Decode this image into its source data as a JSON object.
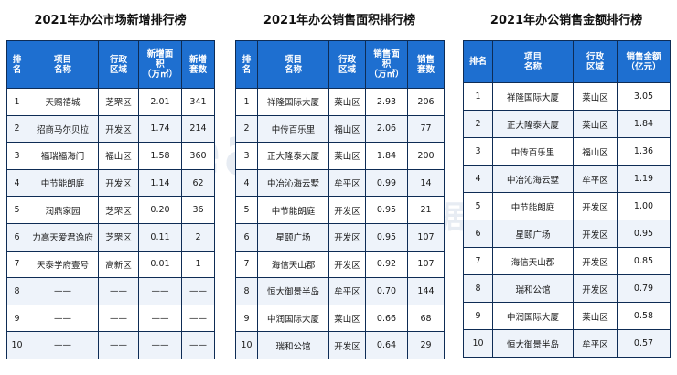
{
  "panels": [
    {
      "title": "2021年办公市场新增排行榜",
      "headers": [
        "排\n名",
        "项目\n名称",
        "行政\n区域",
        "新增面\n积\n（万㎡）",
        "新增\n套数"
      ],
      "rows": [
        [
          "1",
          "天赐禧城",
          "芝罘区",
          "2.01",
          "341"
        ],
        [
          "2",
          "招商马尔贝拉",
          "开发区",
          "1.74",
          "214"
        ],
        [
          "3",
          "福瑞福海门",
          "福山区",
          "1.58",
          "360"
        ],
        [
          "4",
          "中节能朗庭",
          "开发区",
          "1.14",
          "62"
        ],
        [
          "5",
          "润鼎家园",
          "芝罘区",
          "0.20",
          "36"
        ],
        [
          "6",
          "力高天爱君逸府",
          "芝罘区",
          "0.11",
          "2"
        ],
        [
          "7",
          "天泰学府壹号",
          "高新区",
          "0.01",
          "1"
        ],
        [
          "8",
          "——",
          "——",
          "——",
          "——"
        ],
        [
          "9",
          "——",
          "——",
          "——",
          "——"
        ],
        [
          "10",
          "——",
          "——",
          "——",
          "——"
        ]
      ]
    },
    {
      "title": "2021年办公销售面积排行榜",
      "headers": [
        "排\n名",
        "项目\n名称",
        "行政\n区域",
        "销售面\n积\n（万㎡）",
        "销售\n套数"
      ],
      "rows": [
        [
          "1",
          "祥隆国际大厦",
          "莱山区",
          "2.93",
          "206"
        ],
        [
          "2",
          "中传百乐里",
          "福山区",
          "2.06",
          "77"
        ],
        [
          "3",
          "正大隆泰大厦",
          "莱山区",
          "1.84",
          "200"
        ],
        [
          "4",
          "中冶沁海云墅",
          "牟平区",
          "0.99",
          "14"
        ],
        [
          "5",
          "中节能朗庭",
          "开发区",
          "0.95",
          "21"
        ],
        [
          "6",
          "星颐广场",
          "开发区",
          "0.95",
          "107"
        ],
        [
          "7",
          "海信天山郡",
          "开发区",
          "0.92",
          "107"
        ],
        [
          "8",
          "恒大御景半岛",
          "牟平区",
          "0.70",
          "144"
        ],
        [
          "9",
          "中润国际大厦",
          "莱山区",
          "0.66",
          "68"
        ],
        [
          "10",
          "瑞和公馆",
          "开发区",
          "0.64",
          "29"
        ]
      ]
    },
    {
      "title": "2021年办公销售金额排行榜",
      "headers": [
        "排名",
        "项目\n名称",
        "行政\n区域",
        "销售金额\n（亿元）"
      ],
      "rows": [
        [
          "1",
          "祥隆国际大厦",
          "莱山区",
          "3.05"
        ],
        [
          "2",
          "正大隆泰大厦",
          "莱山区",
          "1.84"
        ],
        [
          "3",
          "中传百乐里",
          "福山区",
          "1.36"
        ],
        [
          "4",
          "中冶沁海云墅",
          "牟平区",
          "1.19"
        ],
        [
          "5",
          "中节能朗庭",
          "开发区",
          "1.00"
        ],
        [
          "6",
          "星颐广场",
          "开发区",
          "0.95"
        ],
        [
          "7",
          "海信天山郡",
          "开发区",
          "0.85"
        ],
        [
          "8",
          "瑞和公馆",
          "开发区",
          "0.79"
        ],
        [
          "9",
          "中润国际大厦",
          "莱山区",
          "0.58"
        ],
        [
          "10",
          "恒大御景半岛",
          "牟平区",
          "0.57"
        ]
      ]
    }
  ],
  "watermark": {
    "big": "Realty",
    "small": "睿隆数据"
  },
  "colors": {
    "header_bg": "#1e6fd0",
    "border": "#0e2c55",
    "alt_row": "#eef3fa"
  }
}
